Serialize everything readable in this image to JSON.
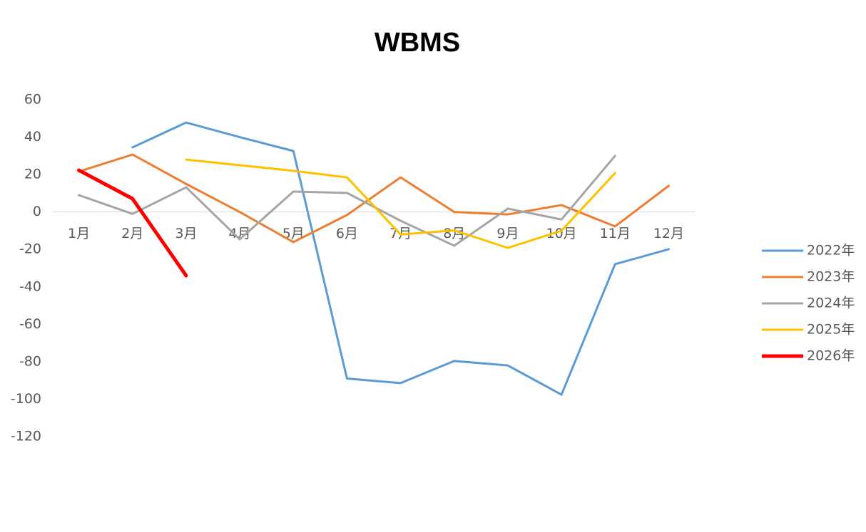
{
  "chart_data": {
    "type": "line",
    "title": "WBMS",
    "categories": [
      "1月",
      "2月",
      "3月",
      "4月",
      "5月",
      "6月",
      "7月",
      "8月",
      "9月",
      "10月",
      "11月",
      "12月"
    ],
    "series": [
      {
        "name": "2022年",
        "color": "#5b9bd5",
        "line_width": 3,
        "values": [
          null,
          34.5,
          47.8,
          40,
          32.6,
          -89,
          -91.4,
          -79.6,
          -82,
          -97.6,
          -27.9,
          -19.9
        ]
      },
      {
        "name": "2023年",
        "color": "#ed7d31",
        "line_width": 3,
        "values": [
          21.6,
          30.7,
          15,
          0,
          -16.1,
          -1.6,
          18.5,
          0,
          -1.3,
          3.7,
          -7.7,
          14
        ]
      },
      {
        "name": "2024年",
        "color": "#a5a5a5",
        "line_width": 3,
        "values": [
          9,
          -1,
          13.2,
          -14.6,
          10.9,
          10.2,
          -4.7,
          -18,
          1.8,
          -4,
          30,
          null
        ]
      },
      {
        "name": "2025年",
        "color": "#ffc000",
        "line_width": 3,
        "values": [
          null,
          null,
          28,
          25,
          22,
          18.5,
          -12,
          -9.8,
          -19.2,
          -10,
          20.8,
          null
        ]
      },
      {
        "name": "2026年",
        "color": "#ff0000",
        "line_width": 5,
        "values": [
          22.3,
          7.1,
          -34,
          null,
          null,
          null,
          null,
          null,
          null,
          null,
          null,
          null
        ]
      }
    ],
    "ylim": [
      -120,
      60
    ],
    "yticks": [
      -120,
      -100,
      -80,
      -60,
      -40,
      -20,
      0,
      20,
      40,
      60
    ],
    "grid": false,
    "legend": "right"
  }
}
